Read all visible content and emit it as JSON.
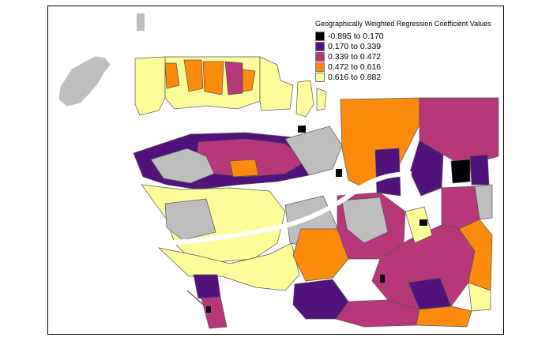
{
  "map": {
    "legend": {
      "title": "Geographically Weighted Regression Coefficient Values",
      "classes": [
        {
          "label": "-0.895 to 0.170",
          "color": "#000004"
        },
        {
          "label": "0.170 to 0.339",
          "color": "#51127c"
        },
        {
          "label": "0.339 to 0.472",
          "color": "#b73779"
        },
        {
          "label": "0.472 to 0.616",
          "color": "#fc8a0c"
        },
        {
          "label": "0.616 to 0.882",
          "color": "#fcfc9a"
        }
      ]
    },
    "colors": {
      "missing": "#bebebe",
      "water": "#ffffff",
      "border": "#555555"
    }
  }
}
